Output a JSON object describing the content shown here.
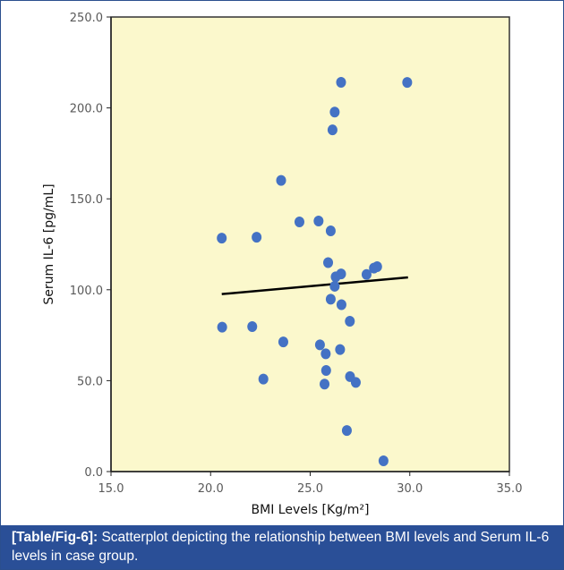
{
  "chart_data": {
    "type": "scatter",
    "title": "",
    "xlabel": "BMI Levels [Kg/m²]",
    "ylabel": "Serum IL-6 [pg/mL]",
    "xlim": [
      15,
      35
    ],
    "ylim": [
      0,
      250
    ],
    "xticks": [
      "15.0",
      "20.0",
      "25.0",
      "30.0",
      "35.0"
    ],
    "yticks": [
      "0.0",
      "50.0",
      "100.0",
      "150.0",
      "200.0",
      "250.0"
    ],
    "grid": false,
    "legend": "none",
    "points": [
      [
        26.55,
        214.1
      ],
      [
        29.87,
        214.0
      ],
      [
        26.23,
        197.7
      ],
      [
        26.12,
        187.9
      ],
      [
        23.54,
        160.1
      ],
      [
        24.46,
        137.3
      ],
      [
        25.42,
        137.8
      ],
      [
        26.03,
        132.4
      ],
      [
        20.56,
        128.4
      ],
      [
        22.31,
        128.9
      ],
      [
        25.9,
        114.9
      ],
      [
        28.36,
        112.7
      ],
      [
        28.2,
        111.9
      ],
      [
        26.55,
        108.7
      ],
      [
        26.28,
        107.1
      ],
      [
        27.83,
        108.4
      ],
      [
        26.23,
        101.9
      ],
      [
        26.03,
        94.8
      ],
      [
        26.57,
        91.8
      ],
      [
        26.99,
        82.7
      ],
      [
        20.58,
        79.4
      ],
      [
        22.09,
        79.7
      ],
      [
        23.65,
        71.3
      ],
      [
        25.49,
        69.7
      ],
      [
        26.5,
        67.1
      ],
      [
        25.78,
        64.8
      ],
      [
        25.8,
        55.6
      ],
      [
        22.65,
        50.9
      ],
      [
        27.0,
        52.2
      ],
      [
        27.29,
        49.0
      ],
      [
        25.72,
        48.1
      ],
      [
        26.84,
        22.6
      ],
      [
        28.68,
        5.9
      ]
    ],
    "trendline": {
      "x": [
        20.56,
        29.91
      ],
      "y": [
        97.6,
        106.8
      ]
    },
    "colors": {
      "point": "#4472c4",
      "plot_bg": "#fbf8cc",
      "trendline": "#000000"
    }
  },
  "caption": {
    "label": "[Table/Fig-6]:",
    "text": " Scatterplot depicting the relationship between BMI levels and Serum IL-6 levels in case group."
  }
}
